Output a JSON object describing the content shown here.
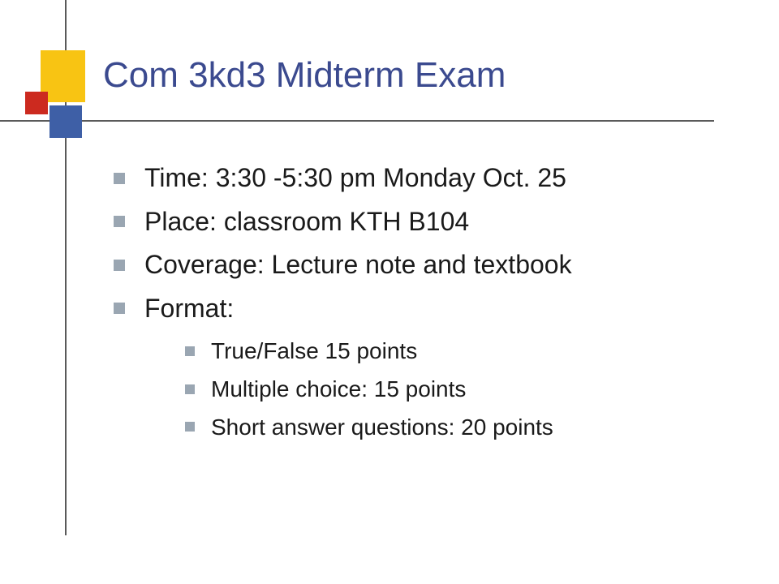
{
  "slide": {
    "title": "Com 3kd3 Midterm Exam",
    "title_color": "#3b4a8f",
    "title_fontsize": 44,
    "body_fontsize_l1": 32,
    "body_fontsize_l2": 28,
    "text_color": "#1a1a1a",
    "bullet_color": "#9aa6b2",
    "line_color": "#5a5a5a",
    "deco_colors": {
      "yellow": "#f8c413",
      "blue": "#3e5fa6",
      "red": "#cc2a1f"
    },
    "bullets": [
      {
        "text": "Time: 3:30 -5:30 pm Monday Oct. 25"
      },
      {
        "text": "Place: classroom KTH B104"
      },
      {
        "text": "Coverage: Lecture note and textbook"
      },
      {
        "text": "Format:",
        "children": [
          {
            "text": "True/False 15 points"
          },
          {
            "text": "Multiple choice: 15 points"
          },
          {
            "text": "Short answer questions: 20 points"
          }
        ]
      }
    ]
  }
}
